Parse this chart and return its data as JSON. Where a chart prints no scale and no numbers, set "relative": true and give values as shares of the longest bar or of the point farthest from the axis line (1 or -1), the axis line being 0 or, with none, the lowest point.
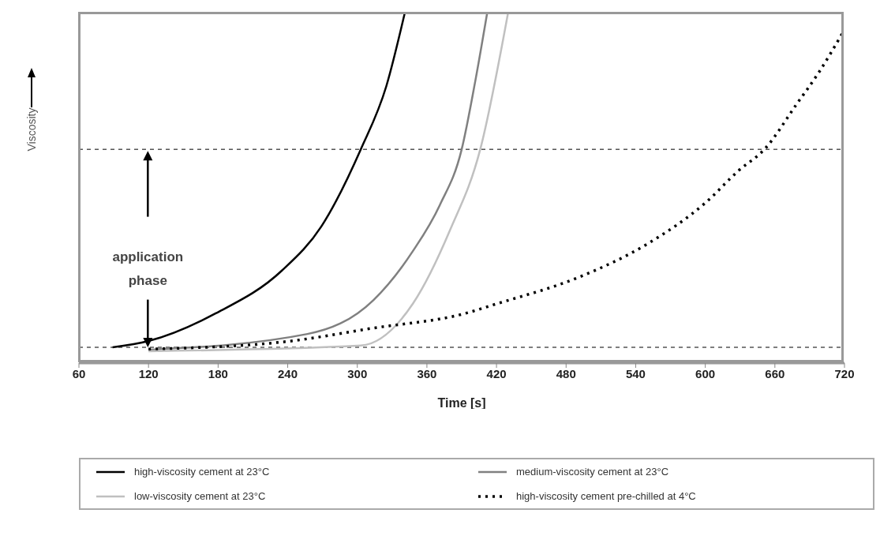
{
  "chart_data": {
    "type": "line",
    "xlabel": "Time [s]",
    "ylabel": "Viscosity",
    "relative": true,
    "xlim": [
      60,
      720
    ],
    "xticks": [
      60,
      120,
      180,
      240,
      300,
      360,
      420,
      480,
      540,
      600,
      660,
      720
    ],
    "legend": "bottom",
    "marker": "none",
    "annotations": [
      "application phase"
    ],
    "ref_lines": [
      {
        "axis": "y",
        "value": 0.61,
        "color": "#555555",
        "line_style": "dashed"
      },
      {
        "axis": "y",
        "value": 0.045,
        "color": "#555555",
        "line_style": "dashed"
      }
    ],
    "series": [
      {
        "name": "high-viscosity cement at 23°C",
        "color": "#000000",
        "line_style": "solid",
        "x": [
          89,
          120,
          178,
          235,
          269,
          303,
          325,
          341
        ],
        "values": [
          0.045,
          0.063,
          0.142,
          0.264,
          0.39,
          0.61,
          0.79,
          1
        ]
      },
      {
        "name": "medium-viscosity cement at 23°C",
        "color": "#808080",
        "line_style": "solid",
        "x": [
          120,
          257,
          314,
          348,
          371,
          390,
          402,
          412
        ],
        "values": [
          0.038,
          0.083,
          0.18,
          0.32,
          0.45,
          0.61,
          0.81,
          1
        ]
      },
      {
        "name": "low-viscosity cement at 23°C",
        "color": "#c0c0c0",
        "line_style": "solid",
        "x": [
          120,
          303,
          348,
          380,
          406,
          430
        ],
        "values": [
          0.034,
          0.05,
          0.17,
          0.38,
          0.61,
          1
        ]
      },
      {
        "name": "high-viscosity cement pre-chilled at 4°C",
        "color": "#000000",
        "line_style": "dotted",
        "x": [
          120,
          235,
          314,
          391,
          421,
          491,
          550,
          600,
          629,
          651,
          679,
          698,
          718
        ],
        "values": [
          0.04,
          0.06,
          0.1,
          0.14,
          0.17,
          0.245,
          0.34,
          0.457,
          0.55,
          0.61,
          0.74,
          0.83,
          0.94
        ]
      }
    ]
  }
}
